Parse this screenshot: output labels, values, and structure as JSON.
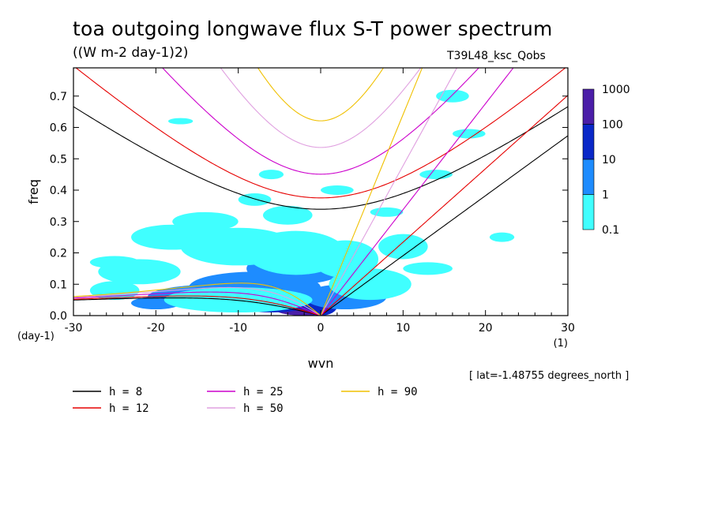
{
  "title": "toa outgoing longwave flux S-T power spectrum",
  "units": "((W m-2 day-1)2)",
  "run_label": "T39L48_ksc_Qobs",
  "footnote": "[ lat=-1.48755 degrees_north ]",
  "chart_data": {
    "type": "heatmap",
    "xlabel": "wvn",
    "ylabel": "freq",
    "x_unit_label": "(1)",
    "y_unit_label": "(day-1)",
    "xlim": [
      -30,
      30
    ],
    "ylim": [
      0,
      0.79
    ],
    "xticks": [
      -30,
      -20,
      -10,
      0,
      10,
      20,
      30
    ],
    "xtick_labels": [
      "-30",
      "-20",
      "-10",
      "0",
      "10",
      "20",
      "30"
    ],
    "yticks": [
      0.0,
      0.1,
      0.2,
      0.3,
      0.4,
      0.5,
      0.6,
      0.7
    ],
    "ytick_labels": [
      "0.0",
      "0.1",
      "0.2",
      "0.3",
      "0.4",
      "0.5",
      "0.6",
      "0.7"
    ],
    "colorbar": {
      "levels": [
        "0.1",
        "1",
        "10",
        "100",
        "1000"
      ],
      "colors": [
        "#40ffff",
        "#1e8cff",
        "#0a28c8",
        "#4b1ea8"
      ]
    },
    "power_patches": [
      {
        "x": -2,
        "y": 0.02,
        "rx": 3.5,
        "ry": 0.02,
        "level": 3
      },
      {
        "x": -6,
        "y": 0.04,
        "rx": 5,
        "ry": 0.03,
        "level": 2
      },
      {
        "x": 0,
        "y": 0.03,
        "rx": 2,
        "ry": 0.03,
        "level": 2
      },
      {
        "x": -8,
        "y": 0.09,
        "rx": 8,
        "ry": 0.05,
        "level": 1
      },
      {
        "x": -3,
        "y": 0.15,
        "rx": 6,
        "ry": 0.05,
        "level": 1
      },
      {
        "x": -12,
        "y": 0.06,
        "rx": 9,
        "ry": 0.04,
        "level": 1
      },
      {
        "x": 3,
        "y": 0.06,
        "rx": 5,
        "ry": 0.04,
        "level": 1
      },
      {
        "x": -20,
        "y": 0.04,
        "rx": 3,
        "ry": 0.02,
        "level": 1
      },
      {
        "x": -18,
        "y": 0.25,
        "rx": 5,
        "ry": 0.04,
        "level": 0
      },
      {
        "x": -10,
        "y": 0.22,
        "rx": 7,
        "ry": 0.06,
        "level": 0
      },
      {
        "x": -3,
        "y": 0.2,
        "rx": 6,
        "ry": 0.07,
        "level": 0
      },
      {
        "x": 3,
        "y": 0.18,
        "rx": 4,
        "ry": 0.06,
        "level": 0
      },
      {
        "x": -22,
        "y": 0.14,
        "rx": 5,
        "ry": 0.04,
        "level": 0
      },
      {
        "x": -14,
        "y": 0.3,
        "rx": 4,
        "ry": 0.03,
        "level": 0
      },
      {
        "x": -4,
        "y": 0.32,
        "rx": 3,
        "ry": 0.03,
        "level": 0
      },
      {
        "x": 6,
        "y": 0.1,
        "rx": 5,
        "ry": 0.05,
        "level": 0
      },
      {
        "x": 10,
        "y": 0.22,
        "rx": 3,
        "ry": 0.04,
        "level": 0
      },
      {
        "x": -25,
        "y": 0.08,
        "rx": 3,
        "ry": 0.03,
        "level": 0
      },
      {
        "x": -10,
        "y": 0.05,
        "rx": 9,
        "ry": 0.04,
        "level": 0
      },
      {
        "x": -25,
        "y": 0.17,
        "rx": 3,
        "ry": 0.02,
        "level": 0
      },
      {
        "x": -8,
        "y": 0.37,
        "rx": 2,
        "ry": 0.02,
        "level": 0
      },
      {
        "x": 2,
        "y": 0.4,
        "rx": 2,
        "ry": 0.015,
        "level": 0
      },
      {
        "x": 8,
        "y": 0.33,
        "rx": 2,
        "ry": 0.015,
        "level": 0
      },
      {
        "x": -6,
        "y": 0.45,
        "rx": 1.5,
        "ry": 0.015,
        "level": 0
      },
      {
        "x": 14,
        "y": 0.45,
        "rx": 2,
        "ry": 0.015,
        "level": 0
      },
      {
        "x": 18,
        "y": 0.58,
        "rx": 2,
        "ry": 0.015,
        "level": 0
      },
      {
        "x": 22,
        "y": 0.25,
        "rx": 1.5,
        "ry": 0.015,
        "level": 0
      },
      {
        "x": 16,
        "y": 0.7,
        "rx": 2,
        "ry": 0.02,
        "level": 0
      },
      {
        "x": -17,
        "y": 0.62,
        "rx": 1.5,
        "ry": 0.01,
        "level": 0
      },
      {
        "x": 13,
        "y": 0.15,
        "rx": 3,
        "ry": 0.02,
        "level": 0
      }
    ],
    "series": [
      {
        "name": "h =  8",
        "h": 8,
        "color": "#000000"
      },
      {
        "name": "h = 12",
        "h": 12,
        "color": "#e60000"
      },
      {
        "name": "h = 25",
        "h": 25,
        "color": "#cc00cc"
      },
      {
        "name": "h = 50",
        "h": 50,
        "color": "#e0a0e0"
      },
      {
        "name": "h = 90",
        "h": 90,
        "color": "#f0c000"
      }
    ]
  }
}
